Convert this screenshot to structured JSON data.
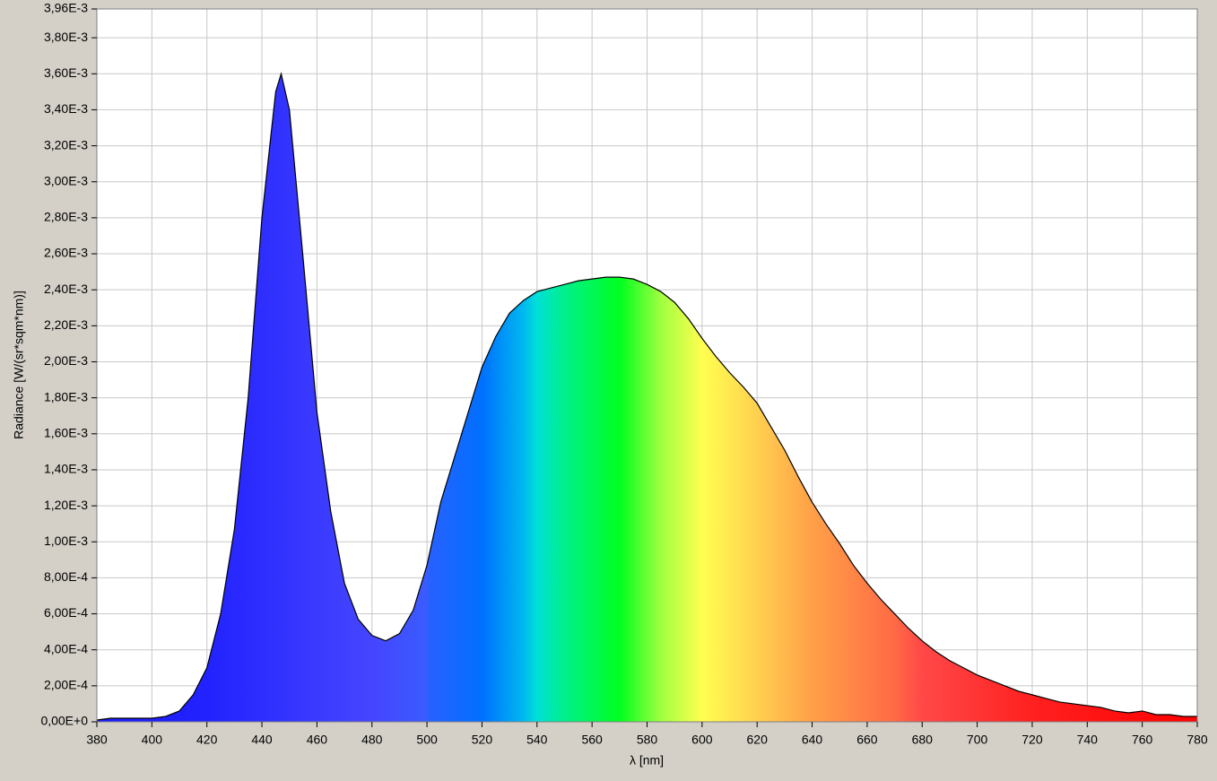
{
  "chart_data": {
    "type": "area",
    "x_label": "λ [nm]",
    "y_label": "Radiance [W/(sr*sqm*nm)]",
    "xlim": [
      380,
      780
    ],
    "xticks": [
      380,
      400,
      420,
      440,
      460,
      480,
      500,
      520,
      540,
      560,
      580,
      600,
      620,
      640,
      660,
      680,
      700,
      720,
      740,
      760,
      780
    ],
    "ylim": [
      0,
      0.00396
    ],
    "yticks": [
      {
        "value": 0,
        "label": "0,00E+0"
      },
      {
        "value": 0.0002,
        "label": "2,00E-4"
      },
      {
        "value": 0.0004,
        "label": "4,00E-4"
      },
      {
        "value": 0.0006,
        "label": "6,00E-4"
      },
      {
        "value": 0.0008,
        "label": "8,00E-4"
      },
      {
        "value": 0.001,
        "label": "1,00E-3"
      },
      {
        "value": 0.0012,
        "label": "1,20E-3"
      },
      {
        "value": 0.0014,
        "label": "1,40E-3"
      },
      {
        "value": 0.0016,
        "label": "1,60E-3"
      },
      {
        "value": 0.0018,
        "label": "1,80E-3"
      },
      {
        "value": 0.002,
        "label": "2,00E-3"
      },
      {
        "value": 0.0022,
        "label": "2,20E-3"
      },
      {
        "value": 0.0024,
        "label": "2,40E-3"
      },
      {
        "value": 0.0026,
        "label": "2,60E-3"
      },
      {
        "value": 0.0028,
        "label": "2,80E-3"
      },
      {
        "value": 0.003,
        "label": "3,00E-3"
      },
      {
        "value": 0.0032,
        "label": "3,20E-3"
      },
      {
        "value": 0.0034,
        "label": "3,40E-3"
      },
      {
        "value": 0.0036,
        "label": "3,60E-3"
      },
      {
        "value": 0.0038,
        "label": "3,80E-3"
      },
      {
        "value": 0.00396,
        "label": "3,96E-3"
      }
    ],
    "grid": true,
    "line_color": "#000000",
    "x": [
      380,
      385,
      390,
      395,
      400,
      405,
      410,
      415,
      420,
      425,
      430,
      435,
      440,
      445,
      447,
      450,
      455,
      460,
      465,
      470,
      475,
      480,
      485,
      490,
      495,
      500,
      505,
      510,
      515,
      520,
      525,
      530,
      535,
      540,
      545,
      550,
      555,
      560,
      565,
      570,
      575,
      580,
      585,
      590,
      595,
      600,
      605,
      610,
      615,
      620,
      625,
      630,
      635,
      640,
      645,
      650,
      655,
      660,
      665,
      670,
      675,
      680,
      685,
      690,
      695,
      700,
      705,
      710,
      715,
      720,
      725,
      730,
      735,
      740,
      745,
      750,
      755,
      760,
      765,
      770,
      775,
      780
    ],
    "values": [
      1e-05,
      2e-05,
      2e-05,
      2e-05,
      2e-05,
      3e-05,
      6e-05,
      0.00015,
      0.0003,
      0.0006,
      0.00107,
      0.0018,
      0.0028,
      0.0035,
      0.0036,
      0.0034,
      0.00257,
      0.00172,
      0.00117,
      0.00077,
      0.00057,
      0.00048,
      0.00045,
      0.00049,
      0.00062,
      0.00087,
      0.00122,
      0.00147,
      0.00172,
      0.00197,
      0.00214,
      0.00227,
      0.00234,
      0.00239,
      0.00241,
      0.00243,
      0.00245,
      0.00246,
      0.00247,
      0.00247,
      0.00246,
      0.00243,
      0.00239,
      0.00233,
      0.00224,
      0.00213,
      0.00203,
      0.00194,
      0.00186,
      0.00177,
      0.00164,
      0.00151,
      0.00136,
      0.00122,
      0.0011,
      0.00099,
      0.00087,
      0.00077,
      0.00068,
      0.0006,
      0.00052,
      0.00045,
      0.00039,
      0.00034,
      0.0003,
      0.00026,
      0.00023,
      0.0002,
      0.00017,
      0.00015,
      0.00013,
      0.00011,
      0.0001,
      9e-05,
      8e-05,
      6e-05,
      5e-05,
      6e-05,
      4e-05,
      4e-05,
      3e-05,
      3e-05
    ]
  }
}
